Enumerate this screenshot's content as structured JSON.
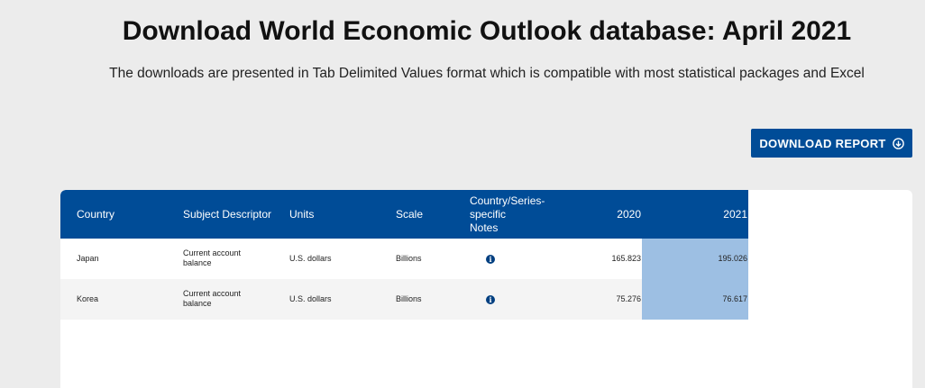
{
  "header": {
    "title": "Download World Economic Outlook database: April 2021",
    "subtitle": "The downloads are presented in Tab Delimited Values format which is compatible with most statistical packages and Excel"
  },
  "toolbar": {
    "download_label": "DOWNLOAD REPORT",
    "download_icon": "circle-arrow-down-icon"
  },
  "table": {
    "columns": {
      "country": "Country",
      "subject": "Subject Descriptor",
      "units": "Units",
      "scale": "Scale",
      "notes_line1": "Country/Series-",
      "notes_line2": "specific",
      "notes_line3": "Notes",
      "y2020": "2020",
      "y2021": "2021"
    },
    "rows": [
      {
        "country": "Japan",
        "subject_line1": "Current account",
        "subject_line2": "balance",
        "units": "U.S. dollars",
        "scale": "Billions",
        "notes_icon": "info-icon",
        "y2020": "165.823",
        "y2021": "195.026"
      },
      {
        "country": "Korea",
        "subject_line1": "Current account",
        "subject_line2": "balance",
        "units": "U.S. dollars",
        "scale": "Billions",
        "notes_icon": "info-icon",
        "y2020": "75.276",
        "y2021": "76.617"
      }
    ]
  },
  "colors": {
    "page_background": "#ececec",
    "header_blue": "#004c97",
    "highlight_column": "#9dbfe3",
    "info_icon": "#003f80"
  }
}
